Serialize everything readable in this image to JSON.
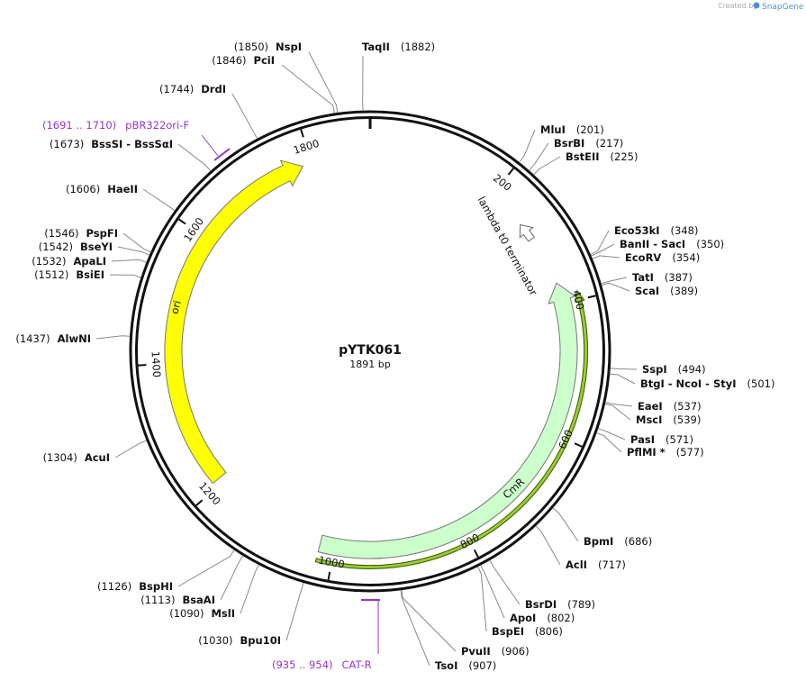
{
  "header": {
    "created_by": "Created by",
    "brand": "SnapGene"
  },
  "map": {
    "name": "pYTK061",
    "length": {
      "value": 1891,
      "label": "1891 bp"
    },
    "ticks": [
      200,
      400,
      600,
      800,
      1000,
      1200,
      1400,
      1600,
      1800
    ],
    "features": [
      {
        "name": "ori"
      },
      {
        "name": "CmR"
      },
      {
        "name": "lambda t0 terminator"
      }
    ],
    "primers": [
      {
        "range": "(1691 .. 1710)",
        "name": "pBR322ori-F"
      },
      {
        "range": "(935 .. 954)",
        "name": "CAT-R"
      }
    ],
    "sites": [
      {
        "name": "NspI",
        "position": {
          "value": 1850,
          "label": "(1850)"
        }
      },
      {
        "name": "PciI",
        "position": {
          "value": 1846,
          "label": "(1846)"
        }
      },
      {
        "name": "TaqII",
        "position": {
          "value": 1882,
          "label": "(1882)"
        }
      },
      {
        "name": "DrdI",
        "position": {
          "value": 1744,
          "label": "(1744)"
        }
      },
      {
        "name": "BssSI - BssSαI",
        "position": {
          "value": 1673,
          "label": "(1673)"
        }
      },
      {
        "name": "HaeII",
        "position": {
          "value": 1606,
          "label": "(1606)"
        }
      },
      {
        "name": "PspFI",
        "position": {
          "value": 1546,
          "label": "(1546)"
        }
      },
      {
        "name": "BseYI",
        "position": {
          "value": 1542,
          "label": "(1542)"
        }
      },
      {
        "name": "ApaLI",
        "position": {
          "value": 1532,
          "label": "(1532)"
        }
      },
      {
        "name": "BsiEI",
        "position": {
          "value": 1512,
          "label": "(1512)"
        }
      },
      {
        "name": "AlwNI",
        "position": {
          "value": 1437,
          "label": "(1437)"
        }
      },
      {
        "name": "AcuI",
        "position": {
          "value": 1304,
          "label": "(1304)"
        }
      },
      {
        "name": "BspHI",
        "position": {
          "value": 1126,
          "label": "(1126)"
        }
      },
      {
        "name": "BsaAI",
        "position": {
          "value": 1113,
          "label": "(1113)"
        }
      },
      {
        "name": "MslI",
        "position": {
          "value": 1090,
          "label": "(1090)"
        }
      },
      {
        "name": "Bpu10I",
        "position": {
          "value": 1030,
          "label": "(1030)"
        }
      },
      {
        "name": "MluI",
        "position": {
          "value": 201,
          "label": "(201)"
        }
      },
      {
        "name": "BsrBI",
        "position": {
          "value": 217,
          "label": "(217)"
        }
      },
      {
        "name": "BstEII",
        "position": {
          "value": 225,
          "label": "(225)"
        }
      },
      {
        "name": "Eco53kI",
        "position": {
          "value": 348,
          "label": "(348)"
        }
      },
      {
        "name": "BanII - SacI",
        "position": {
          "value": 350,
          "label": "(350)"
        }
      },
      {
        "name": "EcoRV",
        "position": {
          "value": 354,
          "label": "(354)"
        }
      },
      {
        "name": "TatI",
        "position": {
          "value": 387,
          "label": "(387)"
        }
      },
      {
        "name": "ScaI",
        "position": {
          "value": 389,
          "label": "(389)"
        }
      },
      {
        "name": "SspI",
        "position": {
          "value": 494,
          "label": "(494)"
        }
      },
      {
        "name": "BtgI - NcoI - StyI",
        "position": {
          "value": 501,
          "label": "(501)"
        }
      },
      {
        "name": "EaeI",
        "position": {
          "value": 537,
          "label": "(537)"
        }
      },
      {
        "name": "MscI",
        "position": {
          "value": 539,
          "label": "(539)"
        }
      },
      {
        "name": "PasI",
        "position": {
          "value": 571,
          "label": "(571)"
        }
      },
      {
        "name": "PflMI *",
        "position": {
          "value": 577,
          "label": "(577)"
        }
      },
      {
        "name": "BpmI",
        "position": {
          "value": 686,
          "label": "(686)"
        }
      },
      {
        "name": "AclI",
        "position": {
          "value": 717,
          "label": "(717)"
        }
      },
      {
        "name": "BsrDI",
        "position": {
          "value": 789,
          "label": "(789)"
        }
      },
      {
        "name": "ApoI",
        "position": {
          "value": 802,
          "label": "(802)"
        }
      },
      {
        "name": "BspEI",
        "position": {
          "value": 806,
          "label": "(806)"
        }
      },
      {
        "name": "PvuII",
        "position": {
          "value": 906,
          "label": "(906)"
        }
      },
      {
        "name": "TsoI",
        "position": {
          "value": 907,
          "label": "(907)"
        }
      }
    ]
  }
}
